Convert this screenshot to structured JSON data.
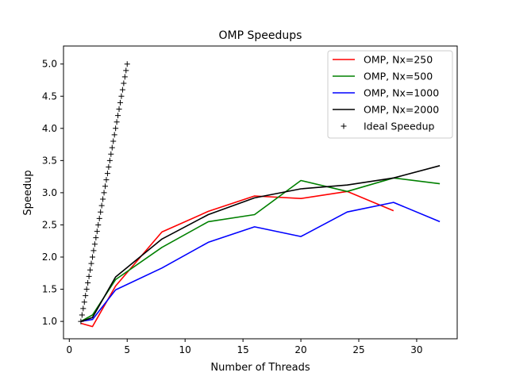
{
  "chart_data": {
    "type": "line",
    "title": "OMP Speedups",
    "xlabel": "Number of Threads",
    "ylabel": "Speedup",
    "xlim": [
      -0.5,
      33.5
    ],
    "ylim": [
      0.73,
      5.28
    ],
    "x_ticks": [
      0,
      5,
      10,
      15,
      20,
      25,
      30
    ],
    "y_ticks": [
      1.0,
      1.5,
      2.0,
      2.5,
      3.0,
      3.5,
      4.0,
      4.5,
      5.0
    ],
    "x_tick_labels": [
      "0",
      "5",
      "10",
      "15",
      "20",
      "25",
      "30"
    ],
    "y_tick_labels": [
      "1.0",
      "1.5",
      "2.0",
      "2.5",
      "3.0",
      "3.5",
      "4.0",
      "4.5",
      "5.0"
    ],
    "grid": false,
    "legend_position": "top-right",
    "series": [
      {
        "name": "OMP, Nx=250",
        "color": "#ff0000",
        "style": "line",
        "x": [
          1,
          2,
          4,
          8,
          12,
          16,
          20,
          24,
          28
        ],
        "y": [
          0.97,
          0.92,
          1.55,
          2.39,
          2.71,
          2.95,
          2.91,
          3.02,
          2.72
        ]
      },
      {
        "name": "OMP, Nx=500",
        "color": "#008000",
        "style": "line",
        "x": [
          1,
          2,
          4,
          8,
          12,
          16,
          20,
          24,
          28,
          32
        ],
        "y": [
          1.0,
          1.1,
          1.65,
          2.15,
          2.55,
          2.66,
          3.19,
          3.02,
          3.23,
          3.14
        ]
      },
      {
        "name": "OMP, Nx=1000",
        "color": "#0000ff",
        "style": "line",
        "x": [
          1,
          2,
          4,
          8,
          12,
          16,
          20,
          24,
          28,
          32
        ],
        "y": [
          1.0,
          1.03,
          1.49,
          1.83,
          2.23,
          2.47,
          2.32,
          2.7,
          2.85,
          2.55
        ]
      },
      {
        "name": "OMP, Nx=2000",
        "color": "#000000",
        "style": "line",
        "x": [
          1,
          2,
          4,
          8,
          12,
          16,
          20,
          24,
          28,
          32
        ],
        "y": [
          1.0,
          1.06,
          1.69,
          2.28,
          2.66,
          2.92,
          3.06,
          3.12,
          3.23,
          3.42
        ]
      },
      {
        "name": "Ideal Speedup",
        "color": "#000000",
        "style": "marker",
        "marker": "+",
        "x": [
          1.0,
          1.1,
          1.2,
          1.3,
          1.4,
          1.5,
          1.6,
          1.7,
          1.8,
          1.9,
          2.0,
          2.1,
          2.2,
          2.3,
          2.4,
          2.5,
          2.6,
          2.7,
          2.8,
          2.9,
          3.0,
          3.1,
          3.2,
          3.3,
          3.4,
          3.5,
          3.6,
          3.7,
          3.8,
          3.9,
          4.0,
          4.1,
          4.2,
          4.3,
          4.4,
          4.5,
          4.6,
          4.7,
          4.8,
          4.9,
          5.0
        ],
        "y": [
          1.0,
          1.1,
          1.2,
          1.3,
          1.4,
          1.5,
          1.6,
          1.7,
          1.8,
          1.9,
          2.0,
          2.1,
          2.2,
          2.3,
          2.4,
          2.5,
          2.6,
          2.7,
          2.8,
          2.9,
          3.0,
          3.1,
          3.2,
          3.3,
          3.4,
          3.5,
          3.6,
          3.7,
          3.8,
          3.9,
          4.0,
          4.1,
          4.2,
          4.3,
          4.4,
          4.5,
          4.6,
          4.7,
          4.8,
          4.9,
          5.0
        ]
      }
    ]
  }
}
